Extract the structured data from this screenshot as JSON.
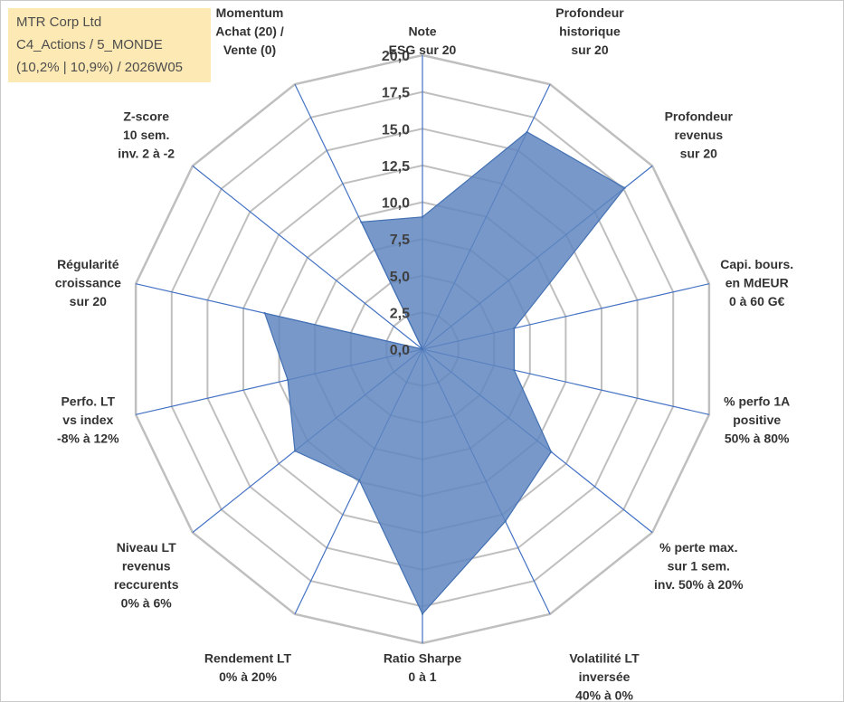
{
  "info": {
    "line1": "MTR Corp Ltd",
    "line2": "C4_Actions / 5_MONDE",
    "line3": "(10,2% | 10,9%) / 2026W05"
  },
  "chart_data": {
    "type": "radar",
    "title": "",
    "rmin": 0,
    "rmax": 20,
    "rticks": [
      "0,0",
      "2,5",
      "5,0",
      "7,5",
      "10,0",
      "12,5",
      "15,0",
      "17,5",
      "20,0"
    ],
    "categories": [
      [
        "Note",
        "ESG sur 20"
      ],
      [
        "Profondeur",
        "historique",
        "sur 20"
      ],
      [
        "Profondeur",
        "revenus",
        "sur 20"
      ],
      [
        "Capi. bours.",
        "en MdEUR",
        "0 à 60 G€"
      ],
      [
        "% perfo 1A",
        "positive",
        "50% à 80%"
      ],
      [
        "% perte max.",
        "sur 1 sem.",
        "inv. 50% à 20%"
      ],
      [
        "Volatilité LT",
        "inversée",
        "40% à 0%"
      ],
      [
        "Ratio Sharpe",
        "0 à 1"
      ],
      [
        "Rendement LT",
        "0% à 20%"
      ],
      [
        "Niveau LT",
        "revenus",
        "reccurents",
        "0% à 6%"
      ],
      [
        "Perfo. LT",
        "vs index",
        "-8% à 12%"
      ],
      [
        "Régularité",
        "croissance",
        "sur 20"
      ],
      [
        "Z-score",
        "10 sem.",
        "inv. 2 à -2"
      ],
      [
        "Momentum",
        "Achat (20) /",
        "Vente (0)"
      ]
    ],
    "series": [
      {
        "name": "MTR Corp Ltd",
        "values": [
          9.0,
          16.4,
          17.6,
          6.4,
          6.4,
          11.2,
          13.0,
          18.0,
          9.9,
          11.1,
          9.4,
          11.0,
          0.0,
          9.6
        ]
      }
    ],
    "colors": {
      "fill": "#5f86bf",
      "stroke": "#4471b3",
      "axis": "#4472c4",
      "grid": "#bfbfbf"
    }
  }
}
